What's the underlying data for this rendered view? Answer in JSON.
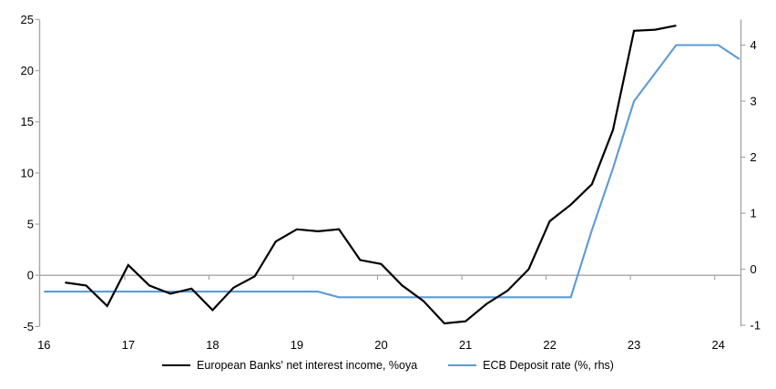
{
  "chart_data": {
    "type": "line",
    "title": "",
    "background": "#FFFFFF",
    "axis_color": "#A6A6A6",
    "text_color": "#000000",
    "grid": "zero-line-only",
    "legend_position": "bottom",
    "x_axis": {
      "ticks": [
        "16",
        "17",
        "18",
        "19",
        "20",
        "21",
        "22",
        "23",
        "24"
      ],
      "tick_values": [
        16,
        17,
        18,
        19,
        20,
        21,
        22,
        23,
        24
      ],
      "range": [
        16,
        24.3
      ]
    },
    "left_axis": {
      "ticks": [
        -5,
        0,
        5,
        10,
        15,
        20,
        25
      ],
      "range": [
        -5,
        25
      ]
    },
    "right_axis": {
      "ticks": [
        -1,
        0,
        1,
        2,
        3,
        4
      ],
      "range": [
        -1.02,
        4.46
      ]
    },
    "series": [
      {
        "key": "nii",
        "name": "European Banks' net interest income, %oya",
        "axis": "left",
        "color": "#000000",
        "line_width": 2.2,
        "x": [
          16.25,
          16.5,
          16.75,
          17.0,
          17.25,
          17.5,
          17.75,
          18.0,
          18.25,
          18.5,
          18.75,
          19.0,
          19.25,
          19.5,
          19.75,
          20.0,
          20.25,
          20.5,
          20.75,
          21.0,
          21.25,
          21.5,
          21.75,
          22.0,
          22.25,
          22.5,
          22.75,
          23.0,
          23.25,
          23.5
        ],
        "y": [
          -0.7,
          -1.0,
          -3.0,
          1.0,
          -1.0,
          -1.8,
          -1.3,
          -3.4,
          -1.2,
          -0.1,
          3.3,
          4.5,
          4.3,
          4.5,
          1.5,
          1.1,
          -1.0,
          -2.5,
          -4.7,
          -4.5,
          -2.8,
          -1.5,
          0.6,
          5.3,
          6.9,
          8.9,
          14.2,
          23.9,
          24.0,
          24.4
        ]
      },
      {
        "key": "ecb-deposit-rate",
        "name": "ECB Deposit rate (%, rhs)",
        "axis": "right",
        "color": "#5B9BD5",
        "line_width": 2.1,
        "x": [
          16.0,
          16.25,
          16.5,
          16.75,
          17.0,
          17.25,
          17.5,
          17.75,
          18.0,
          18.25,
          18.5,
          18.75,
          19.0,
          19.25,
          19.5,
          19.75,
          20.0,
          20.25,
          20.5,
          20.75,
          21.0,
          21.25,
          21.5,
          21.75,
          22.0,
          22.25,
          22.5,
          22.75,
          23.0,
          23.25,
          23.5,
          23.75,
          24.0,
          24.25
        ],
        "y": [
          -0.4,
          -0.4,
          -0.4,
          -0.4,
          -0.4,
          -0.4,
          -0.4,
          -0.4,
          -0.4,
          -0.4,
          -0.4,
          -0.4,
          -0.4,
          -0.4,
          -0.5,
          -0.5,
          -0.5,
          -0.5,
          -0.5,
          -0.5,
          -0.5,
          -0.5,
          -0.5,
          -0.5,
          -0.5,
          -0.5,
          0.7,
          1.8,
          3.0,
          3.5,
          4.0,
          4.0,
          4.0,
          3.75
        ]
      }
    ]
  }
}
